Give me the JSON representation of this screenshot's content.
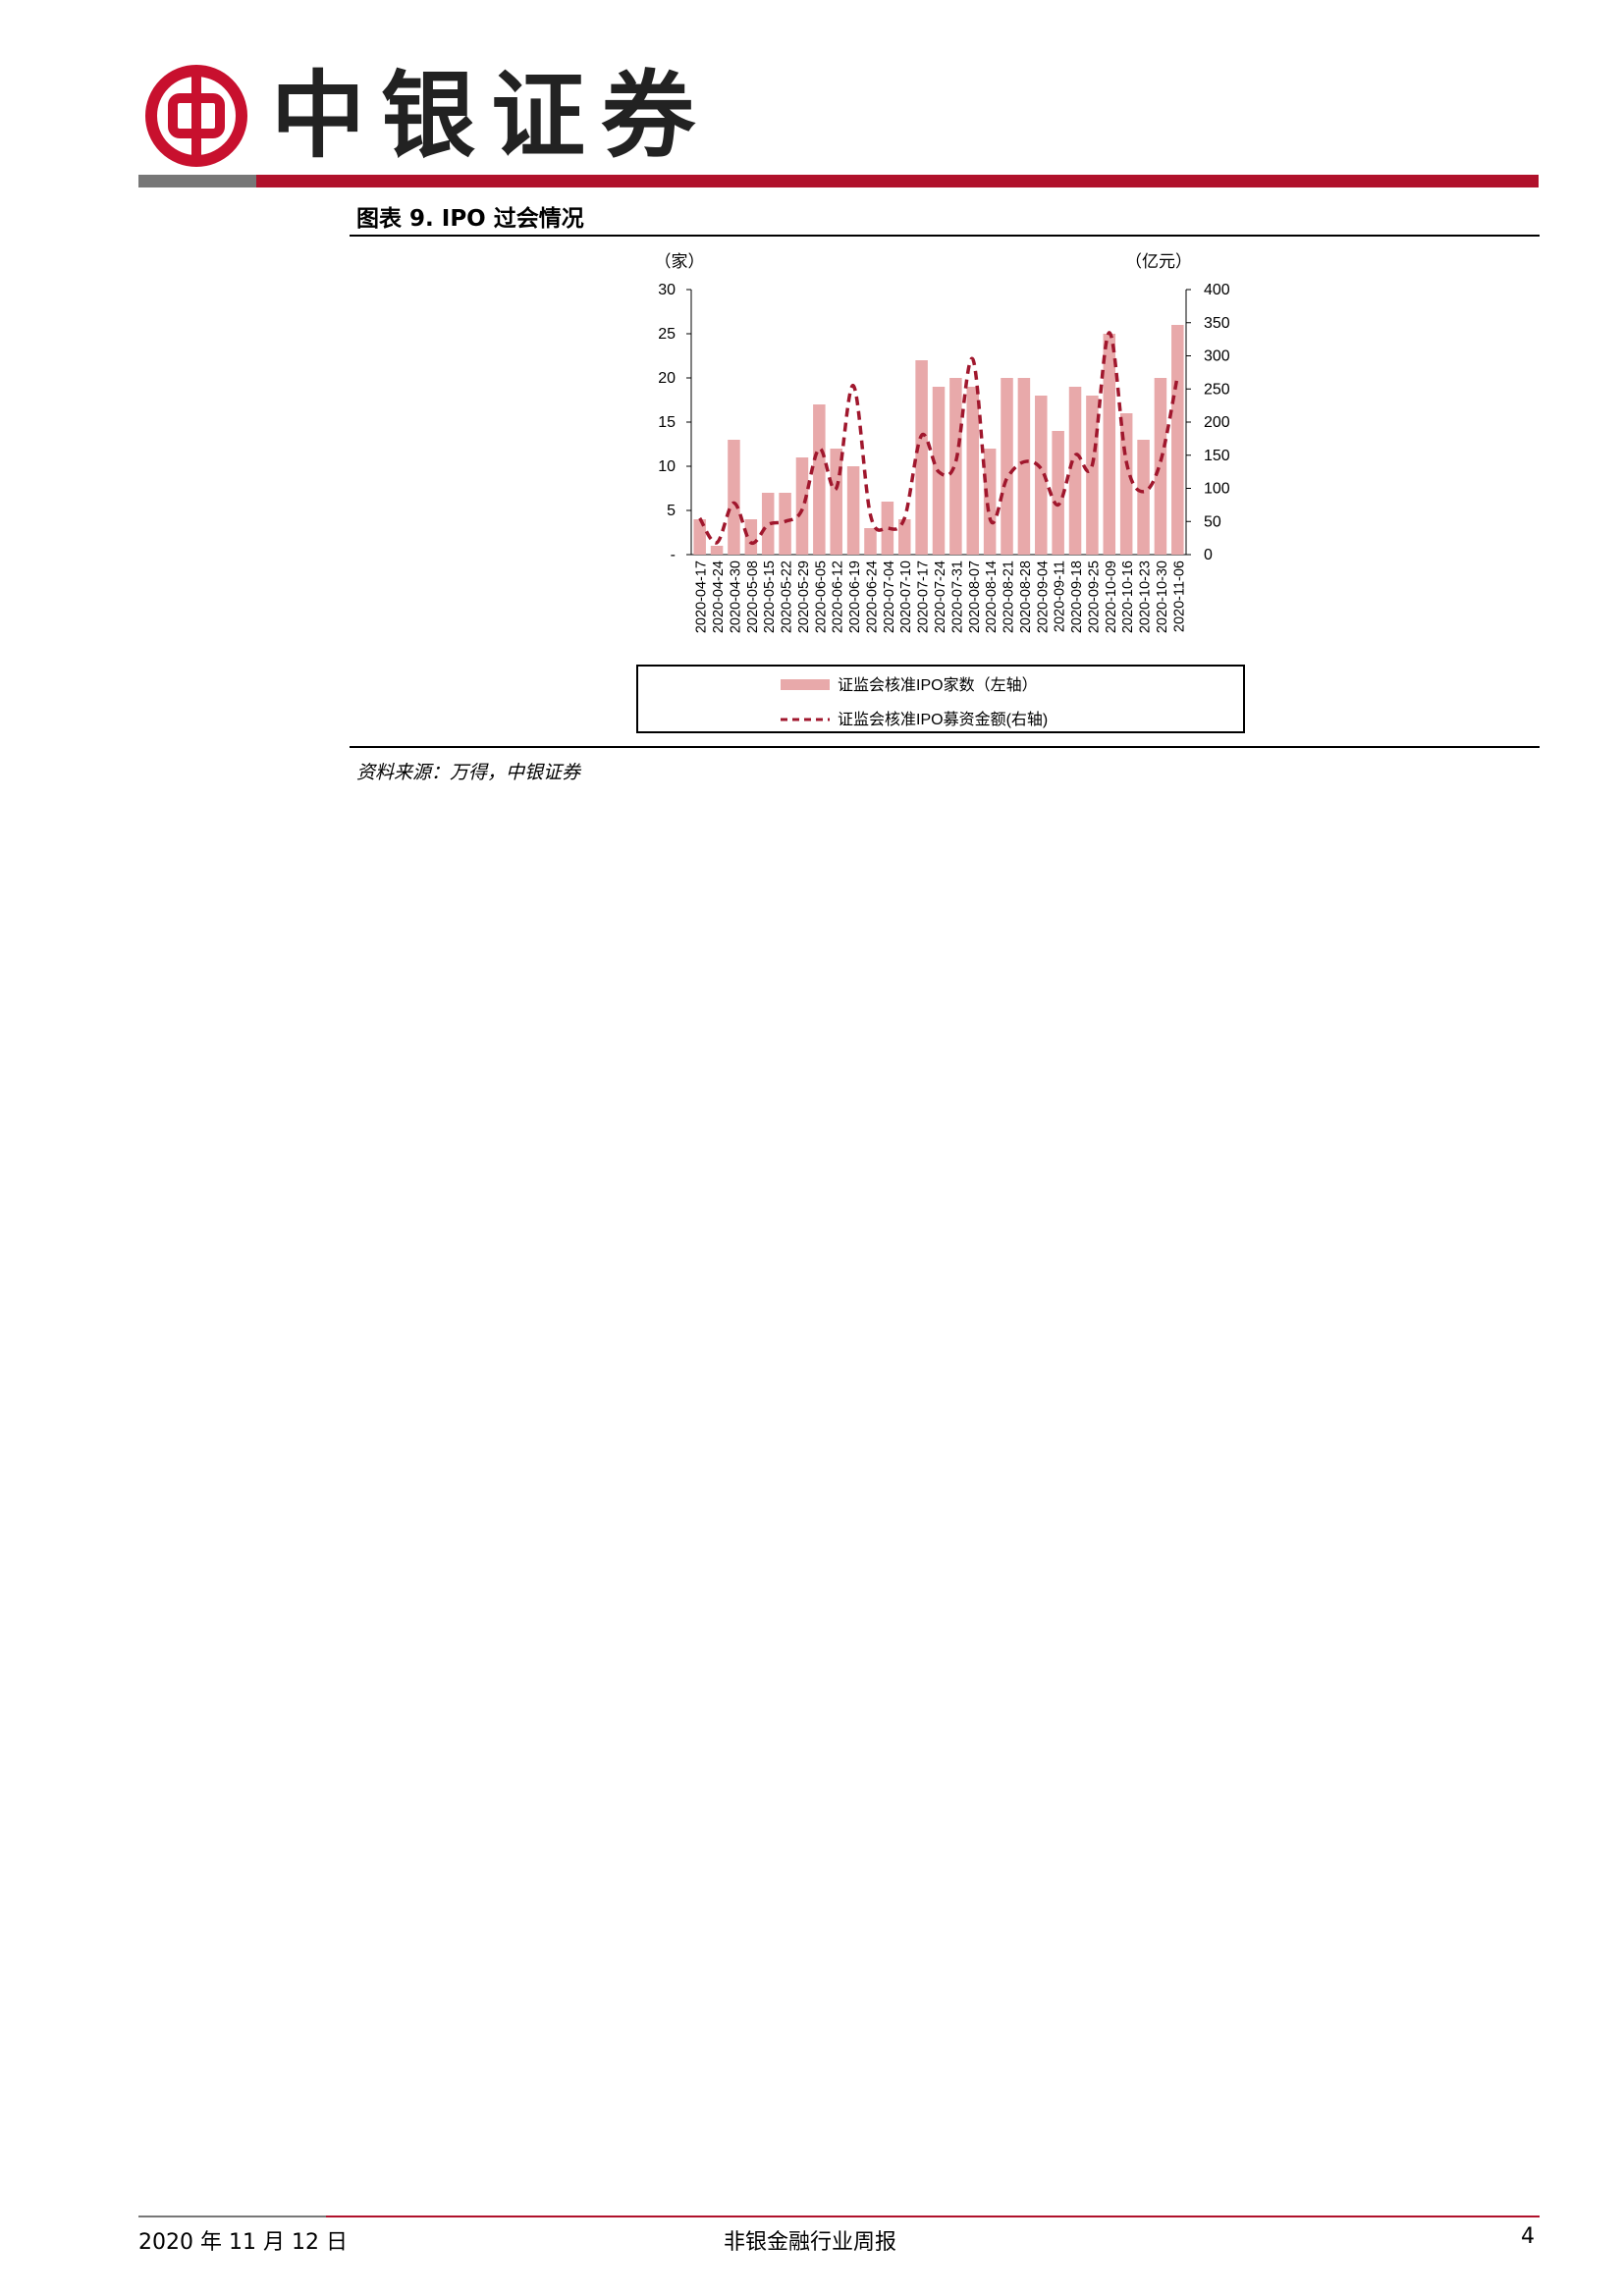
{
  "header": {
    "brand": "中银证券",
    "logo_color": "#c8102e"
  },
  "figure": {
    "heading": "图表 9. IPO 过会情况",
    "source": "资料来源：万得，中银证券"
  },
  "chart_data": {
    "type": "bar",
    "left_axis_unit": "（家）",
    "right_axis_unit": "（亿元）",
    "categories": [
      "2020-04-17",
      "2020-04-24",
      "2020-04-30",
      "2020-05-08",
      "2020-05-15",
      "2020-05-22",
      "2020-05-29",
      "2020-06-05",
      "2020-06-12",
      "2020-06-19",
      "2020-06-24",
      "2020-07-04",
      "2020-07-10",
      "2020-07-17",
      "2020-07-24",
      "2020-07-31",
      "2020-08-07",
      "2020-08-14",
      "2020-08-21",
      "2020-08-28",
      "2020-09-04",
      "2020-09-11",
      "2020-09-18",
      "2020-09-25",
      "2020-10-09",
      "2020-10-16",
      "2020-10-23",
      "2020-10-30",
      "2020-11-06"
    ],
    "left_axis": {
      "min": 0,
      "max": 30,
      "ticks": [
        "-",
        "5",
        "10",
        "15",
        "20",
        "25",
        "30"
      ]
    },
    "right_axis": {
      "min": 0,
      "max": 400,
      "ticks": [
        "0",
        "50",
        "100",
        "150",
        "200",
        "250",
        "300",
        "350",
        "400"
      ]
    },
    "series": [
      {
        "name": "证监会核准IPO家数（左轴）",
        "type": "bar",
        "axis": "left",
        "color": "#e8a9aa",
        "values": [
          4,
          1,
          13,
          4,
          7,
          7,
          11,
          17,
          12,
          10,
          3,
          6,
          4,
          22,
          19,
          20,
          19,
          12,
          20,
          20,
          18,
          14,
          19,
          18,
          25,
          16,
          13,
          20,
          26
        ]
      },
      {
        "name": "证监会核准IPO募资金额(右轴)",
        "type": "line",
        "axis": "right",
        "color": "#a0172d",
        "dashed": true,
        "values": [
          55,
          18,
          78,
          18,
          45,
          50,
          68,
          160,
          100,
          255,
          60,
          40,
          55,
          180,
          125,
          140,
          295,
          55,
          115,
          140,
          130,
          75,
          150,
          135,
          335,
          140,
          95,
          140,
          270
        ]
      }
    ]
  },
  "footer": {
    "date": "2020 年 11 月 12 日",
    "report_title": "非银金融行业周报",
    "page": "4"
  }
}
